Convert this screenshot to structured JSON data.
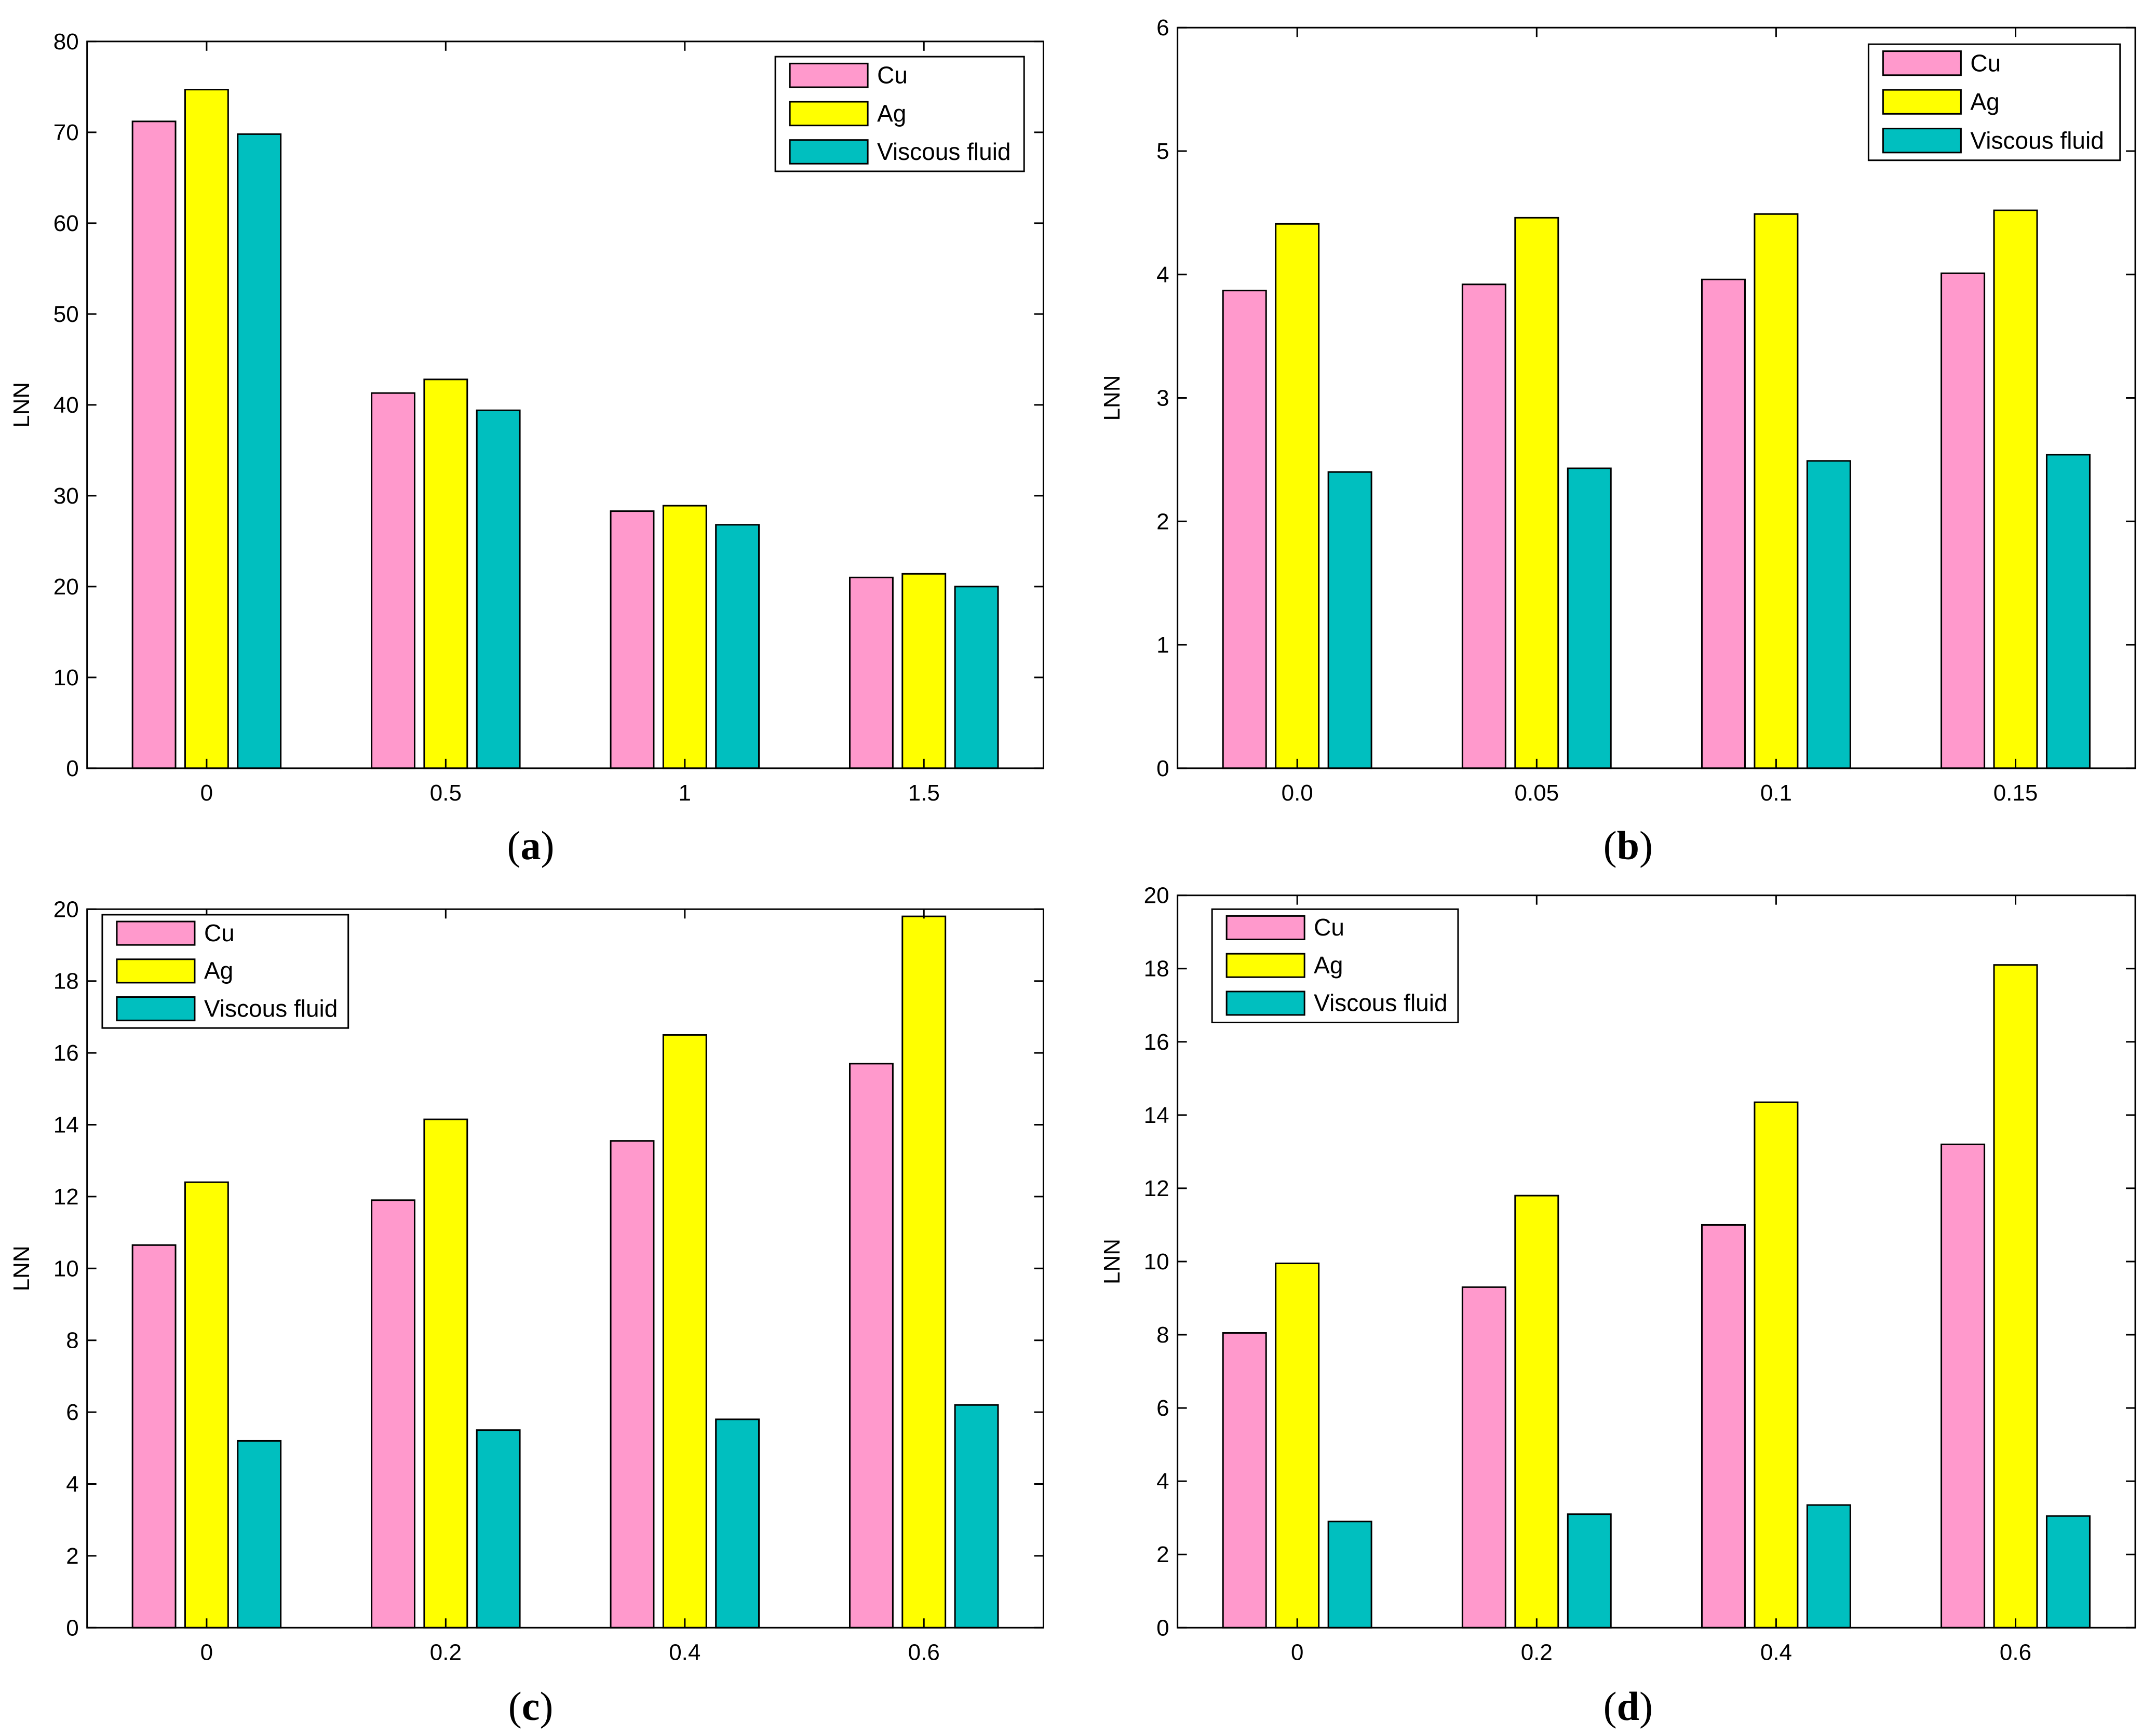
{
  "chart_data": [
    {
      "type": "bar",
      "panel": "a",
      "caption_letter": "a",
      "ylabel": "LNN",
      "xlabel": "",
      "categories": [
        "0",
        "0.5",
        "1",
        "1.5"
      ],
      "ylim": [
        0,
        80
      ],
      "yticks": [
        "0",
        "10",
        "20",
        "30",
        "40",
        "50",
        "60",
        "70",
        "80"
      ],
      "legend_position": "top-right",
      "series": [
        {
          "name": "Cu",
          "color": "#ff99cc",
          "values": [
            71.2,
            41.3,
            28.3,
            21.0
          ]
        },
        {
          "name": "Ag",
          "color": "#ffff00",
          "values": [
            74.7,
            42.8,
            28.9,
            21.4
          ]
        },
        {
          "name": "Viscous fluid",
          "color": "#00bfbf",
          "values": [
            69.8,
            39.4,
            26.8,
            20.0
          ]
        }
      ]
    },
    {
      "type": "bar",
      "panel": "b",
      "caption_letter": "b",
      "ylabel": "LNN",
      "xlabel": "",
      "categories": [
        "0.0",
        "0.05",
        "0.1",
        "0.15"
      ],
      "ylim": [
        0,
        6
      ],
      "yticks": [
        "0",
        "1",
        "2",
        "3",
        "4",
        "5",
        "6"
      ],
      "legend_position": "top-right",
      "series": [
        {
          "name": "Cu",
          "color": "#ff99cc",
          "values": [
            3.87,
            3.92,
            3.96,
            4.01
          ]
        },
        {
          "name": "Ag",
          "color": "#ffff00",
          "values": [
            4.41,
            4.46,
            4.49,
            4.52
          ]
        },
        {
          "name": "Viscous fluid",
          "color": "#00bfbf",
          "values": [
            2.4,
            2.43,
            2.49,
            2.54
          ]
        }
      ]
    },
    {
      "type": "bar",
      "panel": "c",
      "caption_letter": "c",
      "ylabel": "LNN",
      "xlabel": "",
      "categories": [
        "0",
        "0.2",
        "0.4",
        "0.6"
      ],
      "ylim": [
        0,
        20
      ],
      "yticks": [
        "0",
        "2",
        "4",
        "6",
        "8",
        "10",
        "12",
        "14",
        "16",
        "18",
        "20"
      ],
      "legend_position": "top-left",
      "series": [
        {
          "name": "Cu",
          "color": "#ff99cc",
          "values": [
            10.65,
            11.9,
            13.55,
            15.7
          ]
        },
        {
          "name": "Ag",
          "color": "#ffff00",
          "values": [
            12.4,
            14.15,
            16.5,
            19.8
          ]
        },
        {
          "name": "Viscous fluid",
          "color": "#00bfbf",
          "values": [
            5.2,
            5.5,
            5.8,
            6.2
          ]
        }
      ]
    },
    {
      "type": "bar",
      "panel": "d",
      "caption_letter": "d",
      "ylabel": "LNN",
      "xlabel": "",
      "categories": [
        "0",
        "0.2",
        "0.4",
        "0.6"
      ],
      "ylim": [
        0,
        20
      ],
      "yticks": [
        "0",
        "2",
        "4",
        "6",
        "8",
        "10",
        "12",
        "14",
        "16",
        "18",
        "20"
      ],
      "legend_position": "top-left",
      "series": [
        {
          "name": "Cu",
          "color": "#ff99cc",
          "values": [
            8.05,
            9.3,
            11.0,
            13.2
          ]
        },
        {
          "name": "Ag",
          "color": "#ffff00",
          "values": [
            9.95,
            11.8,
            14.35,
            18.1
          ]
        },
        {
          "name": "Viscous fluid",
          "color": "#00bfbf",
          "values": [
            2.9,
            3.1,
            3.35,
            3.05
          ]
        }
      ]
    }
  ]
}
